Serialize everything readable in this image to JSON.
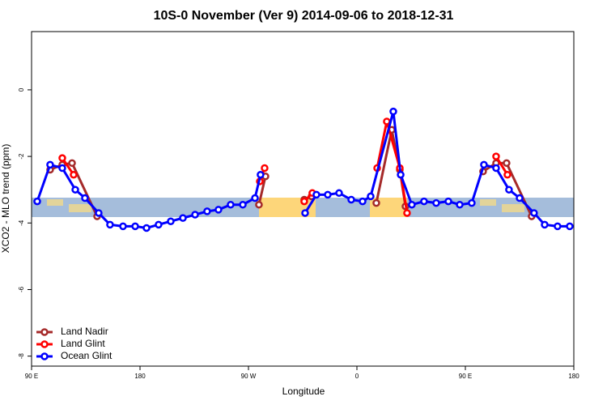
{
  "chart_data": {
    "type": "line",
    "title": "10S-0 November (Ver 9)   2014-09-06 to 2018-12-31",
    "x_label": "Longitude",
    "y_label": "XCO2 - MLO trend (ppm)",
    "xlim": [
      90,
      540
    ],
    "ylim": [
      -8.3,
      1.75
    ],
    "xticks": [
      {
        "value": 90,
        "label": "90 E"
      },
      180,
      {
        "value": 270,
        "label": "90 W"
      },
      {
        "value": 360,
        "label": "0"
      },
      {
        "value": 450,
        "label": "90 E"
      },
      {
        "value": 540,
        "label": "180"
      }
    ],
    "yticks": [
      0,
      -2,
      -4,
      -6,
      -8
    ],
    "legend": "bottom-left",
    "series": [
      {
        "name": "Land Nadir",
        "color": "#a52a2a",
        "x": [
          105.4,
          115.5,
          123.6,
          144.4,
          null,
          278.7,
          284.1,
          null,
          316.3,
          322.4,
          null,
          376.1,
          388.9,
          395.6,
          400.3,
          null,
          464.7,
          475.5,
          484.2,
          505
        ],
        "values": [
          -2.4,
          -2.25,
          -2.2,
          -3.8,
          null,
          -3.45,
          -2.6,
          null,
          -3.3,
          -3.2,
          null,
          -3.4,
          -1.2,
          -2.4,
          -3.5,
          null,
          -2.45,
          -2.2,
          -2.2,
          -3.8
        ]
      },
      {
        "name": "Land Glint",
        "color": "#ff0000",
        "x": [
          115.5,
          124.9,
          null,
          279.4,
          283.4,
          null,
          316.3,
          323,
          null,
          376.8,
          384.8,
          395.6,
          401.6,
          null,
          475.5,
          484.9
        ],
        "values": [
          -2.05,
          -2.55,
          null,
          -2.75,
          -2.35,
          null,
          -3.35,
          -3.1,
          null,
          -2.35,
          -0.95,
          -2.35,
          -3.7,
          null,
          -2.0,
          -2.55
        ]
      },
      {
        "name": "Ocean Glint",
        "color": "#0000ff",
        "x": [
          94.7,
          105.4,
          115.5,
          126.3,
          134.3,
          145.7,
          155.1,
          165.9,
          176,
          185.4,
          195.4,
          205.5,
          215.6,
          225.7,
          235.7,
          245.1,
          255.2,
          265.3,
          275.4,
          280,
          null,
          317,
          326.4,
          335.8,
          345.2,
          355.3,
          364.7,
          371.4,
          390.2,
          396.3,
          405.6,
          415.7,
          425.8,
          435.9,
          445.3,
          455.3,
          465.4,
          475.5,
          486.2,
          495,
          507,
          515.8,
          526.5,
          536.6
        ],
        "values": [
          -3.35,
          -2.25,
          -2.35,
          -3.0,
          -3.25,
          -3.7,
          -4.05,
          -4.1,
          -4.1,
          -4.15,
          -4.05,
          -3.95,
          -3.85,
          -3.75,
          -3.65,
          -3.6,
          -3.45,
          -3.45,
          -3.25,
          -2.55,
          null,
          -3.7,
          -3.15,
          -3.15,
          -3.1,
          -3.3,
          -3.35,
          -3.2,
          -0.65,
          -2.55,
          -3.45,
          -3.35,
          -3.4,
          -3.35,
          -3.45,
          -3.4,
          -2.25,
          -2.35,
          -3.0,
          -3.25,
          -3.7,
          -4.05,
          -4.1,
          -4.1
        ]
      }
    ]
  }
}
